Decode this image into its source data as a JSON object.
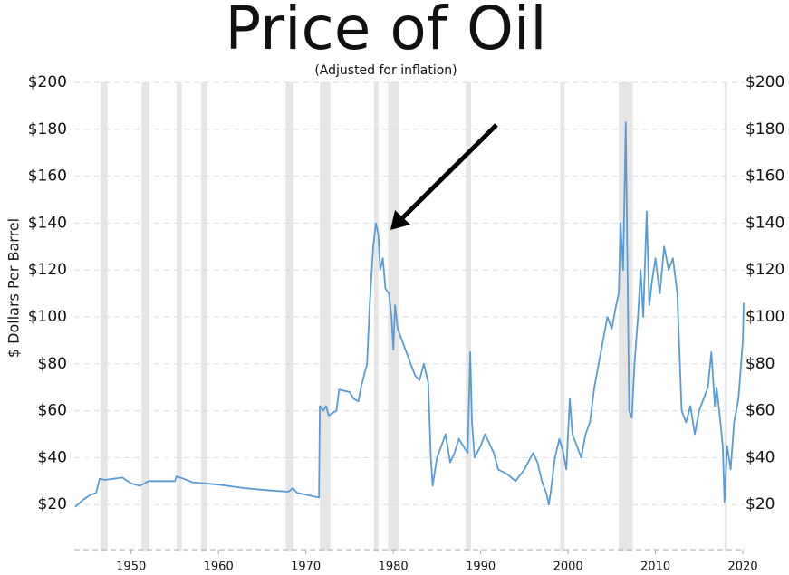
{
  "chart_data": {
    "type": "line",
    "title": "Price of Oil",
    "subtitle": "(Adjusted for inflation)",
    "y_label": "$ Dollars Per Barrel",
    "xlim": [
      1943.5,
      2020.2
    ],
    "xticks": [
      1950,
      1960,
      1970,
      1980,
      1990,
      2000,
      2010,
      2020
    ],
    "ylim": [
      0,
      200
    ],
    "yticks": [
      {
        "value": 20,
        "label": "$20"
      },
      {
        "value": 40,
        "label": "$40"
      },
      {
        "value": 60,
        "label": "$60"
      },
      {
        "value": 80,
        "label": "$80"
      },
      {
        "value": 100,
        "label": "$100"
      },
      {
        "value": 120,
        "label": "$120"
      },
      {
        "value": 140,
        "label": "$140"
      },
      {
        "value": 160,
        "label": "$160"
      },
      {
        "value": 180,
        "label": "$180"
      },
      {
        "value": 200,
        "label": "$200"
      }
    ],
    "grid": true,
    "recessions": [
      [
        1946.5,
        1947.3
      ],
      [
        1951.2,
        1952.1
      ],
      [
        1955.2,
        1955.8
      ],
      [
        1958.0,
        1958.7
      ],
      [
        1967.7,
        1968.6
      ],
      [
        1971.6,
        1972.8
      ],
      [
        1977.8,
        1978.3
      ],
      [
        1979.4,
        1980.6
      ],
      [
        1988.3,
        1988.9
      ],
      [
        1999.1,
        1999.6
      ],
      [
        2005.8,
        2007.4
      ],
      [
        2017.9,
        2018.2
      ]
    ],
    "recession_color": "#e6e6e6",
    "series": [
      {
        "color": "#5b9bd5",
        "x": [
          1943.6,
          1944.5,
          1945.3,
          1946,
          1946.4,
          1947,
          1948,
          1949,
          1950,
          1951,
          1952,
          1954,
          1955,
          1955.2,
          1956,
          1957,
          1960,
          1963,
          1966,
          1968,
          1968.5,
          1969,
          1971.5,
          1971.6,
          1972,
          1972.3,
          1972.6,
          1973.5,
          1973.8,
          1975,
          1975.5,
          1976,
          1976.3,
          1977,
          1977.3,
          1977.7,
          1978,
          1978.3,
          1978.5,
          1978.8,
          1979.1,
          1979.5,
          1979.8,
          1980,
          1980.2,
          1980.5,
          1981,
          1981.5,
          1982,
          1982.5,
          1983,
          1983.5,
          1984,
          1984.3,
          1984.5,
          1985,
          1985.5,
          1986,
          1986.5,
          1987,
          1987.5,
          1988,
          1988.5,
          1988.8,
          1989,
          1989.3,
          1990,
          1990.5,
          1991,
          1991.5,
          1992,
          1993,
          1994,
          1995,
          1996,
          1996.5,
          1997,
          1997.5,
          1997.8,
          1998,
          1998.5,
          1999,
          1999.4,
          1999.8,
          2000.2,
          2000.5,
          2001,
          2001.5,
          2002,
          2002.5,
          2003,
          2003.5,
          2004,
          2004.5,
          2005,
          2005.5,
          2005.8,
          2006,
          2006.3,
          2006.6,
          2006.8,
          2007,
          2007.3,
          2007.6,
          2008,
          2008.3,
          2008.6,
          2009,
          2009.3,
          2009.6,
          2010,
          2010.5,
          2011,
          2011.5,
          2012,
          2012.5,
          2013,
          2013.5,
          2014,
          2014.5,
          2015,
          2015.5,
          2016,
          2016.4,
          2016.8,
          2017,
          2017.3,
          2017.7,
          2017.9,
          2018.2,
          2018.6,
          2019,
          2019.5,
          2019.8,
          2020,
          2020.1
        ],
        "values": [
          19,
          22,
          24,
          25,
          31,
          30.5,
          31,
          31.5,
          29,
          28,
          30,
          30,
          30,
          32,
          31,
          29.5,
          28.5,
          27,
          26,
          25.5,
          27,
          25,
          23,
          62,
          60,
          62,
          58,
          60,
          69,
          68,
          65,
          64,
          70,
          80,
          105,
          130,
          140,
          135,
          120,
          125,
          112,
          110,
          100,
          86,
          105,
          95,
          90,
          85,
          80,
          75,
          73,
          80,
          72,
          40,
          28,
          40,
          45,
          50,
          38,
          42,
          48,
          45,
          42,
          85,
          55,
          40,
          45,
          50,
          46,
          42,
          35,
          33,
          30,
          35,
          42,
          38,
          30,
          25,
          20,
          25,
          40,
          48,
          43,
          35,
          65,
          50,
          45,
          40,
          50,
          55,
          70,
          80,
          90,
          100,
          95,
          105,
          110,
          140,
          120,
          183,
          120,
          60,
          57,
          80,
          100,
          120,
          100,
          145,
          105,
          115,
          125,
          110,
          130,
          120,
          125,
          110,
          60,
          55,
          62,
          50,
          60,
          65,
          70,
          85,
          62,
          70,
          60,
          45,
          21,
          45,
          35,
          55,
          65,
          80,
          90,
          106
        ]
      }
    ]
  }
}
